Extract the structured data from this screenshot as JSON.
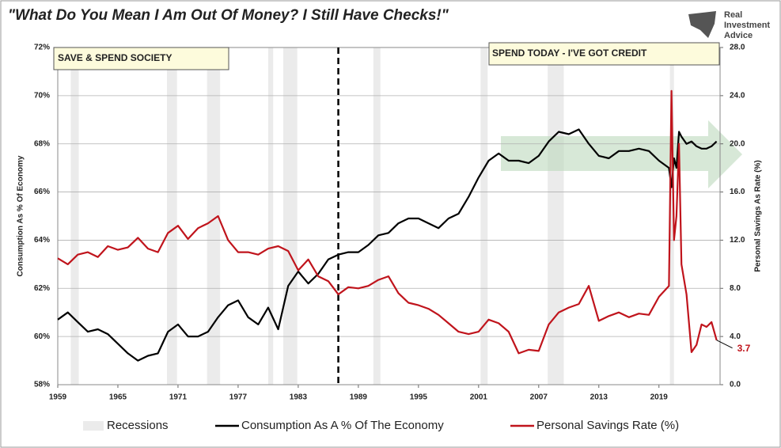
{
  "chart_data": {
    "type": "line",
    "title": "\"What Do You Mean I Am Out Of Money?  I Still Have Checks!\"",
    "brand": [
      "Real",
      "Investment",
      "Advice"
    ],
    "ylabel": "Consumption As % Of Economy",
    "y2label": "Personal Savings As Rate (%)",
    "annotations": [
      "SAVE & SPEND SOCIETY",
      "SPEND TODAY - I'VE GOT CREDIT"
    ],
    "reference_line_x": 1987,
    "recession_label": "Recessions",
    "recession_color": "#ebebeb",
    "recessions": [
      [
        1960.3,
        1961.1
      ],
      [
        1969.9,
        1970.9
      ],
      [
        1973.9,
        1975.2
      ],
      [
        1980.0,
        1980.5
      ],
      [
        1981.5,
        1982.9
      ],
      [
        1990.5,
        1991.2
      ],
      [
        2001.2,
        2001.9
      ],
      [
        2007.9,
        2009.5
      ],
      [
        2020.1,
        2020.5
      ]
    ],
    "xlim": [
      1959,
      2025.1
    ],
    "xticks": [
      1959,
      1965,
      1971,
      1977,
      1983,
      1989,
      1995,
      2001,
      2007,
      2013,
      2019
    ],
    "ylim": [
      58,
      72
    ],
    "yticks": [
      {
        "value": 58,
        "label": "58%"
      },
      {
        "value": 60,
        "label": "60%"
      },
      {
        "value": 62,
        "label": "62%"
      },
      {
        "value": 64,
        "label": "64%"
      },
      {
        "value": 66,
        "label": "66%"
      },
      {
        "value": 68,
        "label": "68%"
      },
      {
        "value": 70,
        "label": "70%"
      },
      {
        "value": 72,
        "label": "72%"
      }
    ],
    "y2lim": [
      0,
      28
    ],
    "y2ticks": [
      {
        "value": 0,
        "label": "0.0"
      },
      {
        "value": 4,
        "label": "4.0"
      },
      {
        "value": 8,
        "label": "8.0"
      },
      {
        "value": 12,
        "label": "12.0"
      },
      {
        "value": 16,
        "label": "16.0"
      },
      {
        "value": 20,
        "label": "20.0"
      },
      {
        "value": 24,
        "label": "24.0"
      },
      {
        "value": 28,
        "label": "28.0"
      }
    ],
    "grid": true,
    "x": [
      1959,
      1960,
      1961,
      1962,
      1963,
      1964,
      1965,
      1966,
      1967,
      1968,
      1969,
      1970,
      1971,
      1972,
      1973,
      1974,
      1975,
      1976,
      1977,
      1978,
      1979,
      1980,
      1981,
      1982,
      1983,
      1984,
      1985,
      1986,
      1987,
      1988,
      1989,
      1990,
      1991,
      1992,
      1993,
      1994,
      1995,
      1996,
      1997,
      1998,
      1999,
      2000,
      2001,
      2002,
      2003,
      2004,
      2005,
      2006,
      2007,
      2008,
      2009,
      2010,
      2011,
      2012,
      2013,
      2014,
      2015,
      2016,
      2017,
      2018,
      2019,
      2020,
      2020.25,
      2020.5,
      2020.75,
      2021,
      2021.25,
      2021.75,
      2022.25,
      2022.75,
      2023.25,
      2023.75,
      2024.25,
      2024.75
    ],
    "series": [
      {
        "name": "Consumption As A % Of The Economy",
        "color": "#000000",
        "axis": "y",
        "values": [
          60.7,
          61.0,
          60.6,
          60.2,
          60.3,
          60.1,
          59.7,
          59.3,
          59.0,
          59.2,
          59.3,
          60.2,
          60.5,
          60.0,
          60.0,
          60.2,
          60.8,
          61.3,
          61.5,
          60.8,
          60.5,
          61.2,
          60.3,
          62.1,
          62.7,
          62.2,
          62.6,
          63.2,
          63.4,
          63.5,
          63.5,
          63.8,
          64.2,
          64.3,
          64.7,
          64.9,
          64.9,
          64.7,
          64.5,
          64.9,
          65.1,
          65.8,
          66.6,
          67.3,
          67.6,
          67.3,
          67.3,
          67.2,
          67.5,
          68.1,
          68.5,
          68.4,
          68.6,
          68.0,
          67.5,
          67.4,
          67.7,
          67.7,
          67.8,
          67.7,
          67.3,
          67.0,
          66.2,
          67.4,
          67.0,
          68.5,
          68.3,
          68.0,
          68.1,
          67.9,
          67.8,
          67.8,
          67.9,
          68.1
        ]
      },
      {
        "name": "Personal Savings Rate (%)",
        "color": "#c0141c",
        "axis": "y2",
        "values": [
          10.5,
          10.0,
          10.8,
          11.0,
          10.6,
          11.5,
          11.2,
          11.4,
          12.2,
          11.3,
          11.0,
          12.6,
          13.2,
          12.1,
          13.0,
          13.4,
          14.0,
          12.0,
          11.0,
          11.0,
          10.8,
          11.3,
          11.5,
          11.1,
          9.5,
          10.4,
          9.0,
          8.6,
          7.5,
          8.1,
          8.0,
          8.2,
          8.7,
          9.0,
          7.6,
          6.8,
          6.6,
          6.3,
          5.8,
          5.1,
          4.4,
          4.2,
          4.4,
          5.4,
          5.1,
          4.4,
          2.6,
          2.9,
          2.8,
          5.0,
          6.0,
          6.4,
          6.7,
          8.2,
          5.3,
          5.7,
          6.0,
          5.6,
          5.9,
          5.8,
          7.3,
          8.2,
          24.4,
          12.0,
          14.0,
          20.0,
          10.0,
          7.5,
          2.7,
          3.3,
          5.0,
          4.8,
          5.2,
          3.7
        ]
      }
    ]
  }
}
